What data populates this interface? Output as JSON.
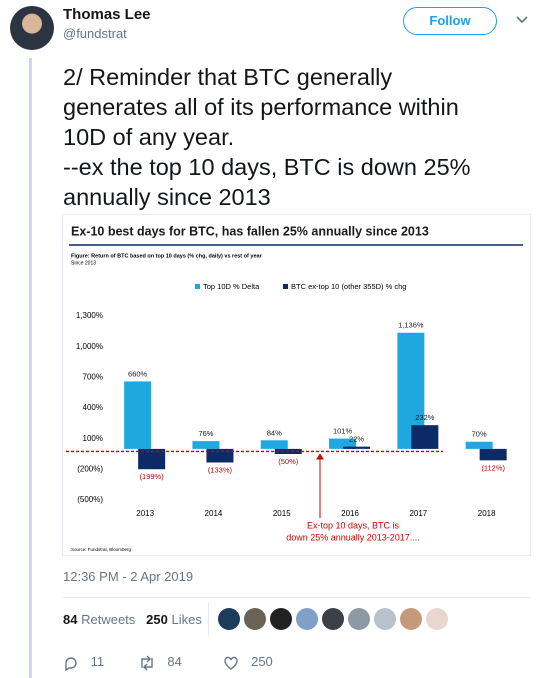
{
  "tweet": {
    "name": "Thomas Lee",
    "handle": "@fundstrat",
    "follow": "Follow",
    "text": [
      "2/ Reminder that BTC generally",
      "generates all of its performance within",
      "10D of any year.",
      "--ex the top 10 days, BTC is down 25%",
      "annually since 2013"
    ],
    "timestamp": "12:36 PM - 2 Apr 2019",
    "retweets": 84,
    "retweets_label": "Retweets",
    "likes": 250,
    "likes_label": "Likes",
    "actions": {
      "replies": 11,
      "retweets": 84,
      "likes": 250
    }
  },
  "chart_data": {
    "type": "bar",
    "title": "Ex-10 best days for BTC, has fallen 25% annually since 2013",
    "subtitle": "Figure: Return of BTC based on top 10 days (% chg, daily) vs rest of year",
    "note": "Since 2013",
    "source": "Source: Fundstrat, Bloomberg",
    "categories": [
      "2013",
      "2014",
      "2015",
      "2016",
      "2017",
      "2018"
    ],
    "series": [
      {
        "name": "Top 10D % Delta",
        "color": "#1fa8e0",
        "values": [
          660,
          76,
          84,
          101,
          1136,
          70
        ],
        "value_labels": [
          "660%",
          "76%",
          "84%",
          "101%",
          "1,136%",
          "70%"
        ]
      },
      {
        "name": "BTC ex-top 10 (other 355D) % chg",
        "color": "#0b2a66",
        "values": [
          -199,
          -133,
          -50,
          22,
          232,
          -112
        ],
        "value_labels": [
          "(199%)",
          "(133%)",
          "(50%)",
          "22%",
          "232%",
          "(112%)"
        ]
      }
    ],
    "ylim": [
      -500,
      1300
    ],
    "yticks": [
      {
        "value": 1300,
        "label": "1,300%"
      },
      {
        "value": 1000,
        "label": "1,000%"
      },
      {
        "value": 700,
        "label": "700%"
      },
      {
        "value": 400,
        "label": "400%"
      },
      {
        "value": 100,
        "label": "100%"
      },
      {
        "value": -200,
        "label": "(200%)"
      },
      {
        "value": -500,
        "label": "(500%)"
      }
    ],
    "reference_line": -25,
    "annotation": [
      "Ex-top 10 days, BTC is",
      "down 25% annually 2013-2017...."
    ]
  }
}
